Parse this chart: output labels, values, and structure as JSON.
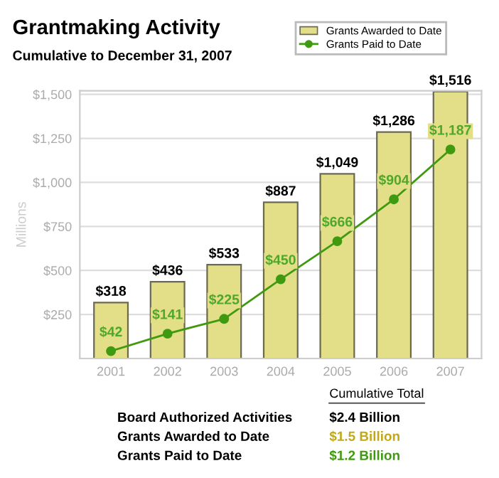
{
  "chart_data": {
    "type": "bar",
    "title": "Grantmaking Activity",
    "subtitle": "Cumulative to December 31, 2007",
    "ylabel": "Millions",
    "categories": [
      "2001",
      "2002",
      "2003",
      "2004",
      "2005",
      "2006",
      "2007"
    ],
    "series": [
      {
        "name": "Grants Awarded to Date",
        "color": "#e3de88",
        "values": [
          318,
          436,
          533,
          887,
          1049,
          1286,
          1516
        ],
        "value_labels": [
          "$318",
          "$436",
          "$533",
          "$887",
          "$1,049",
          "$1,286",
          "$1,516"
        ]
      },
      {
        "name": "Grants Paid to Date",
        "type": "line",
        "color": "#3f9a10",
        "values": [
          42,
          141,
          225,
          450,
          666,
          904,
          1187
        ],
        "value_labels": [
          "$42",
          "$141",
          "$225",
          "$450",
          "$666",
          "$904",
          "$1,187"
        ]
      }
    ],
    "ylim": [
      0,
      1520
    ],
    "yticks": [
      {
        "value": 0,
        "label": null
      },
      {
        "value": 250,
        "label": "$250"
      },
      {
        "value": 500,
        "label": "$500"
      },
      {
        "value": 750,
        "label": "$750"
      },
      {
        "value": 1000,
        "label": "$1,000"
      },
      {
        "value": 1250,
        "label": "$1,250"
      },
      {
        "value": 1500,
        "label": "$1,500"
      }
    ],
    "grid": "y",
    "legend": "top right",
    "marker": "circle",
    "annotations": [
      "Cumulative Total",
      "Board Authorized Activities",
      "$2.4 Billion",
      "Grants Awarded to Date",
      "$1.5 Billion",
      "Grants Paid to Date",
      "$1.2 Billion"
    ]
  }
}
